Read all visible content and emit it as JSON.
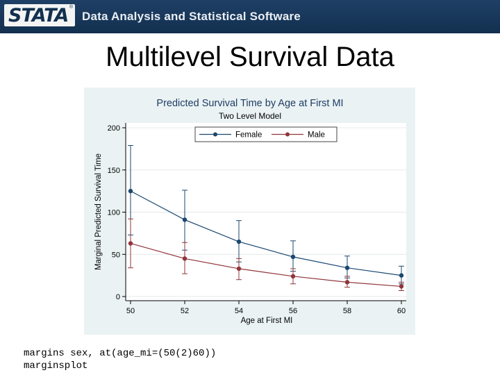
{
  "banner": {
    "logo_text": "STATA",
    "tagline": "Data Analysis and Statistical Software"
  },
  "slide": {
    "title": "Multilevel Survival Data"
  },
  "code": {
    "line1": "margins sex, at(age_mi=(50(2)60))",
    "line2": "marginsplot"
  },
  "chart_data": {
    "type": "line",
    "title": "Predicted Survival Time by Age at First MI",
    "subtitle": "Two Level Model",
    "xlabel": "Age at First MI",
    "ylabel": "Marginal Predicted Survival Time",
    "x": [
      50,
      52,
      54,
      56,
      58,
      60
    ],
    "xticks": [
      "50",
      "52",
      "54",
      "56",
      "58",
      "60"
    ],
    "yticks": [
      "0",
      "50",
      "100",
      "150",
      "200"
    ],
    "xlim": [
      50,
      60
    ],
    "ylim": [
      0,
      200
    ],
    "grid": "horizontal",
    "legend_position": "top",
    "series": [
      {
        "name": "Female",
        "color": "#1a476f",
        "values": [
          125,
          91,
          65,
          47,
          34,
          25
        ],
        "ci_low": [
          73,
          55,
          41,
          30,
          22,
          15
        ],
        "ci_high": [
          179,
          126,
          90,
          66,
          48,
          36
        ]
      },
      {
        "name": "Male",
        "color": "#90353b",
        "values": [
          63,
          45,
          33,
          24,
          17,
          12
        ],
        "ci_low": [
          34,
          27,
          20,
          15,
          11,
          7
        ],
        "ci_high": [
          92,
          64,
          45,
          33,
          24,
          17
        ]
      }
    ]
  }
}
